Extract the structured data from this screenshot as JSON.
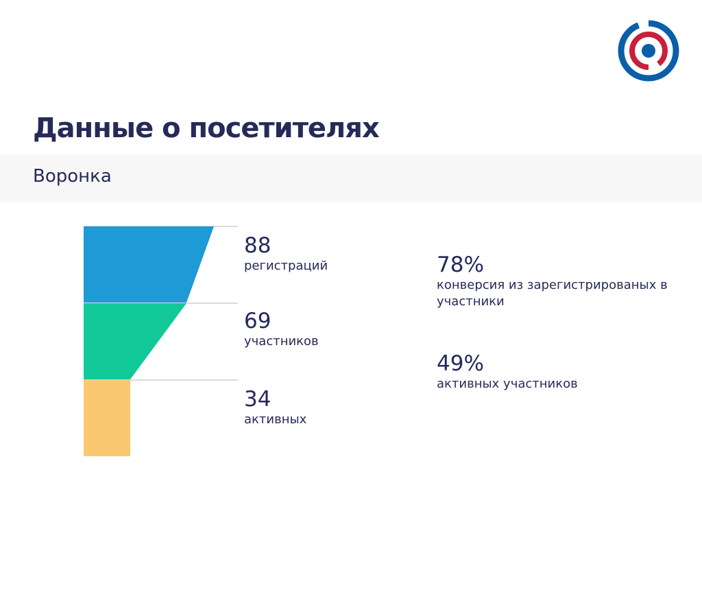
{
  "header": {
    "title": "Данные о посетителях",
    "section": "Воронка"
  },
  "logo": {
    "icon": "target-logo-icon",
    "colors": {
      "outer": "#0b5ea8",
      "middle": "#c8203b",
      "inner": "#0b5ea8"
    }
  },
  "chart_data": {
    "type": "funnel",
    "title": "",
    "stages": [
      {
        "value": "88",
        "label": "регистраций",
        "color": "#1e9ad6"
      },
      {
        "value": "69",
        "label": "участников",
        "color": "#12c999"
      },
      {
        "value": "34",
        "label": "активных",
        "color": "#fac870"
      }
    ],
    "values": [
      88,
      69,
      34
    ],
    "metrics": [
      {
        "value": "78%",
        "label": "конверсия из зарегистрированых в участники"
      },
      {
        "value": "49%",
        "label": "активных участников"
      }
    ]
  }
}
